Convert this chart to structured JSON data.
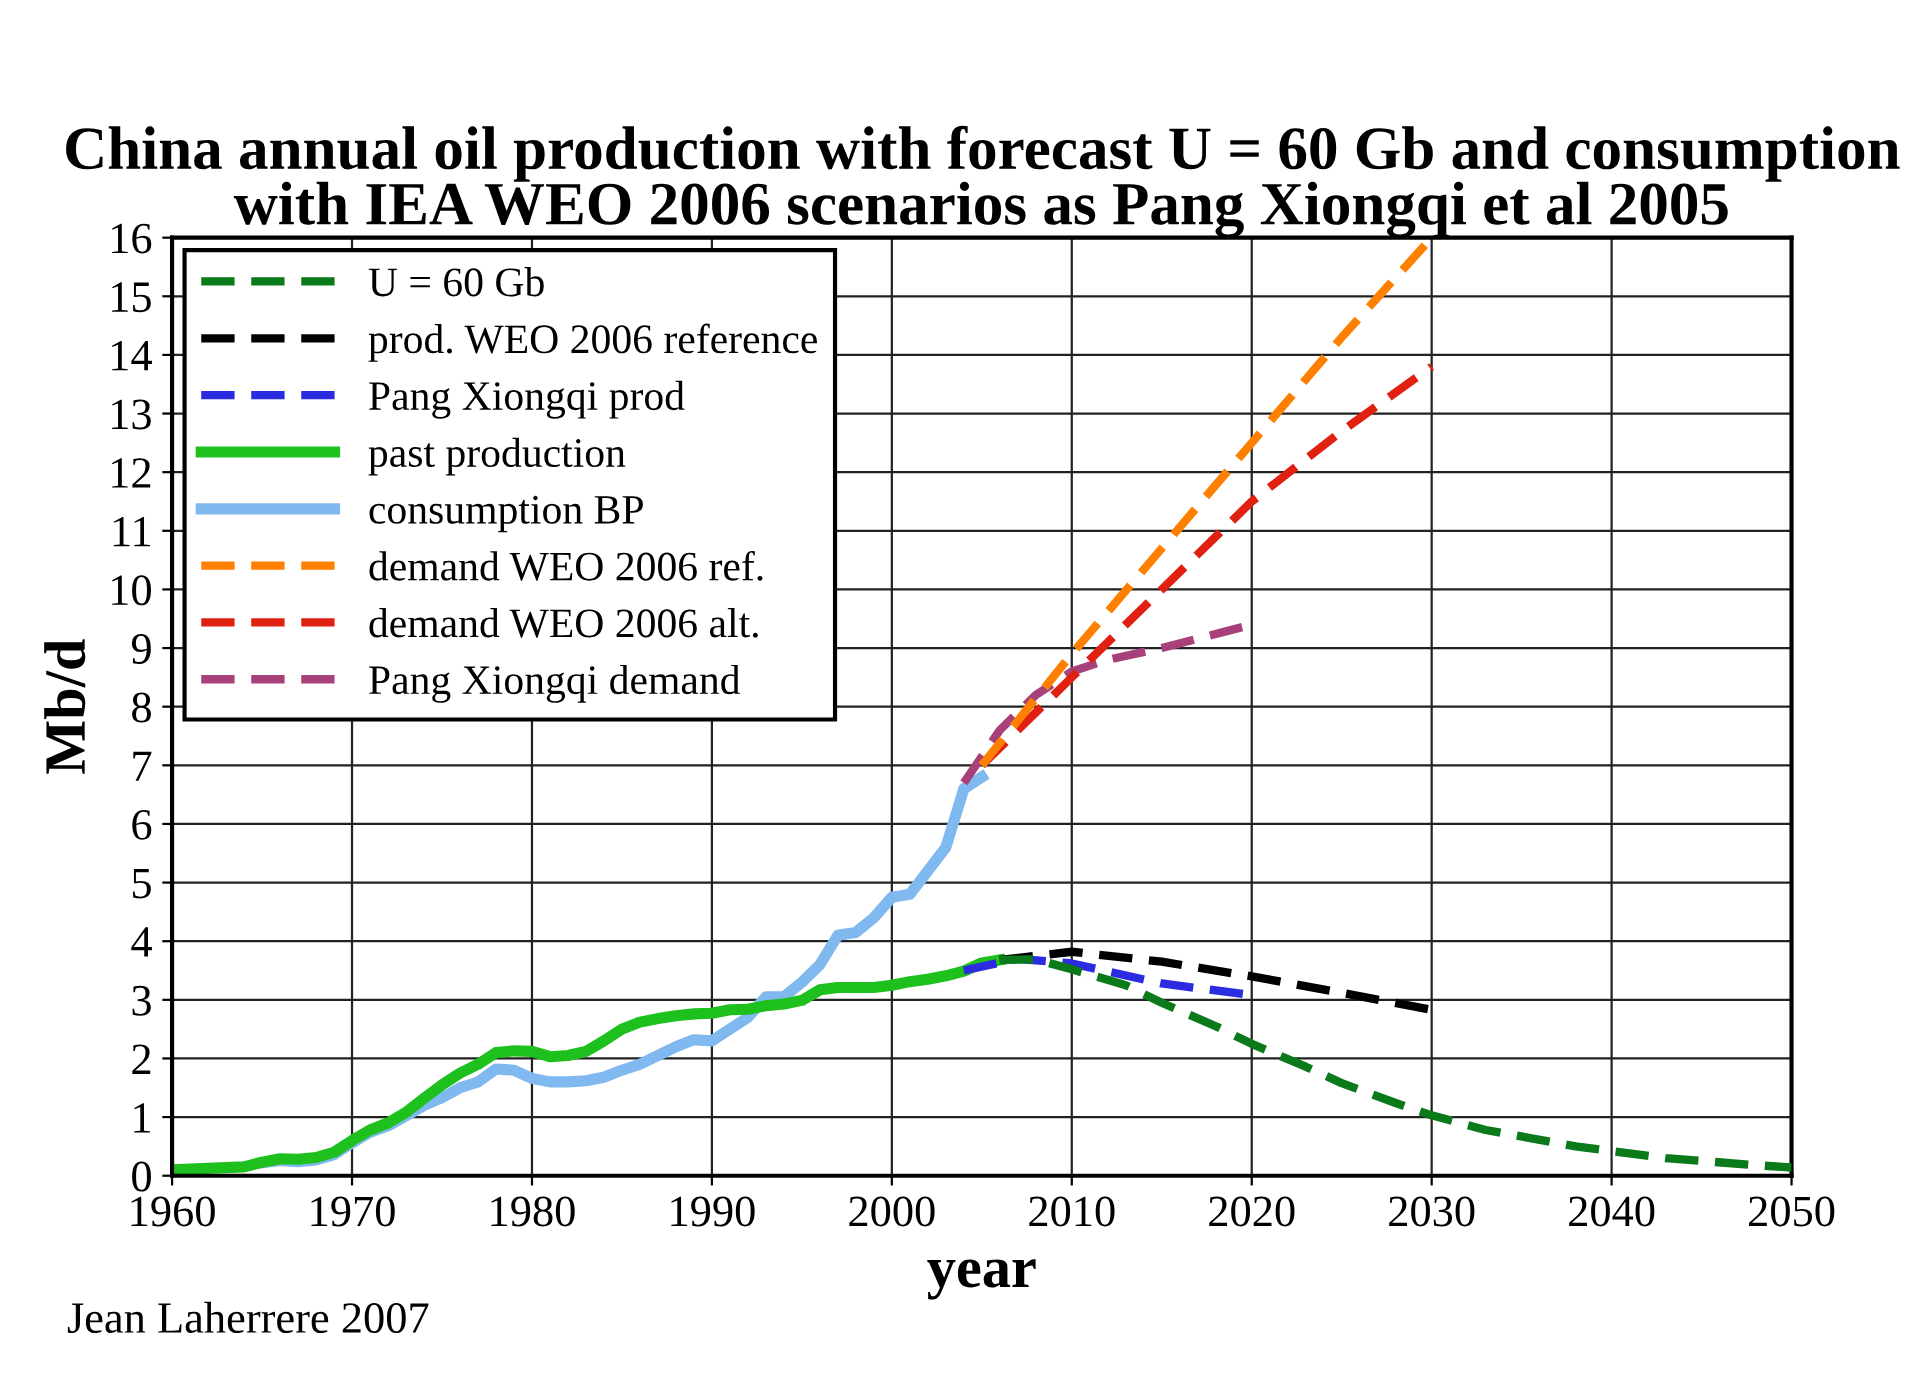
{
  "chart_data": {
    "type": "line",
    "title": "China annual oil production with forecast U = 60 Gb and consumption with IEA WEO 2006 scenarios as Pang Xiongqi et al 2005",
    "xlabel": "year",
    "ylabel": "Mb/d",
    "xlim": [
      1960,
      2050
    ],
    "ylim": [
      0,
      16
    ],
    "xticks": [
      1960,
      1970,
      1980,
      1990,
      2000,
      2010,
      2020,
      2030,
      2040,
      2050
    ],
    "yticks": [
      0,
      1,
      2,
      3,
      4,
      5,
      6,
      7,
      8,
      9,
      10,
      11,
      12,
      13,
      14,
      15,
      16
    ],
    "grid": true,
    "legend": "top left",
    "annotations": [
      "Jean Laherrere 2007"
    ],
    "series": [
      {
        "name": "U = 60 Gb",
        "color": "#0b7a1a",
        "line_style": "dashed",
        "x": [
          2006,
          2008,
          2010,
          2013,
          2015,
          2018,
          2020,
          2023,
          2025,
          2028,
          2030,
          2033,
          2038,
          2043,
          2048,
          2050
        ],
        "values": [
          3.68,
          3.69,
          3.52,
          3.25,
          2.95,
          2.55,
          2.25,
          1.86,
          1.58,
          1.24,
          1.03,
          0.78,
          0.5,
          0.3,
          0.18,
          0.14
        ]
      },
      {
        "name": "prod. WEO 2006 reference",
        "color": "#000000",
        "line_style": "dashed",
        "x": [
          2006,
          2010,
          2015,
          2020,
          2025,
          2030
        ],
        "values": [
          3.68,
          3.82,
          3.65,
          3.4,
          3.12,
          2.83
        ]
      },
      {
        "name": "Pang Xiongqi prod",
        "color": "#2b2be0",
        "line_style": "dashed",
        "x": [
          2004,
          2007,
          2010,
          2015,
          2020
        ],
        "values": [
          3.5,
          3.7,
          3.62,
          3.28,
          3.08
        ]
      },
      {
        "name": "past production",
        "color": "#1ec01e",
        "line_style": "solid",
        "x": [
          1960,
          1964,
          1965,
          1966,
          1967,
          1968,
          1969,
          1970,
          1971,
          1972,
          1973,
          1974,
          1975,
          1976,
          1977,
          1978,
          1979,
          1980,
          1981,
          1982,
          1983,
          1984,
          1985,
          1986,
          1987,
          1988,
          1989,
          1990,
          1991,
          1992,
          1993,
          1994,
          1995,
          1996,
          1997,
          1998,
          1999,
          2000,
          2001,
          2002,
          2003,
          2004,
          2005,
          2006
        ],
        "values": [
          0.1,
          0.15,
          0.23,
          0.29,
          0.28,
          0.31,
          0.4,
          0.6,
          0.78,
          0.9,
          1.08,
          1.32,
          1.55,
          1.75,
          1.9,
          2.1,
          2.13,
          2.12,
          2.03,
          2.05,
          2.12,
          2.3,
          2.5,
          2.62,
          2.68,
          2.73,
          2.76,
          2.77,
          2.83,
          2.84,
          2.9,
          2.93,
          2.99,
          3.17,
          3.21,
          3.21,
          3.21,
          3.25,
          3.31,
          3.35,
          3.41,
          3.49,
          3.63,
          3.68
        ]
      },
      {
        "name": "consumption BP",
        "color": "#80b8f0",
        "line_style": "solid",
        "x": [
          1965,
          1966,
          1967,
          1968,
          1969,
          1970,
          1971,
          1972,
          1973,
          1974,
          1975,
          1976,
          1977,
          1978,
          1979,
          1980,
          1981,
          1982,
          1983,
          1984,
          1985,
          1986,
          1987,
          1988,
          1989,
          1990,
          1991,
          1992,
          1993,
          1994,
          1995,
          1996,
          1997,
          1998,
          1999,
          2000,
          2001,
          2002,
          2003,
          2004,
          2005
        ],
        "values": [
          0.22,
          0.26,
          0.24,
          0.27,
          0.36,
          0.56,
          0.74,
          0.85,
          1.02,
          1.2,
          1.33,
          1.5,
          1.6,
          1.82,
          1.8,
          1.66,
          1.6,
          1.6,
          1.62,
          1.68,
          1.8,
          1.9,
          2.05,
          2.2,
          2.32,
          2.3,
          2.5,
          2.7,
          3.05,
          3.05,
          3.3,
          3.6,
          4.1,
          4.15,
          4.4,
          4.75,
          4.8,
          5.2,
          5.6,
          6.6,
          6.8
        ]
      },
      {
        "name": "demand WEO 2006 ref.",
        "color": "#ff8000",
        "line_style": "dashed",
        "x": [
          2005,
          2010,
          2015,
          2020,
          2025,
          2030
        ],
        "values": [
          7.0,
          8.9,
          10.7,
          12.5,
          14.3,
          16.0
        ]
      },
      {
        "name": "demand WEO 2006 alt.",
        "color": "#e02010",
        "line_style": "dashed",
        "x": [
          2005,
          2010,
          2015,
          2020,
          2025,
          2030
        ],
        "values": [
          7.0,
          8.5,
          10.0,
          11.5,
          12.7,
          13.8
        ]
      },
      {
        "name": "Pang Xiongqi demand",
        "color": "#a8407a",
        "line_style": "dashed",
        "x": [
          2004,
          2006,
          2008,
          2010,
          2012,
          2015,
          2020
        ],
        "values": [
          6.7,
          7.6,
          8.2,
          8.6,
          8.8,
          9.0,
          9.4
        ]
      }
    ]
  }
}
